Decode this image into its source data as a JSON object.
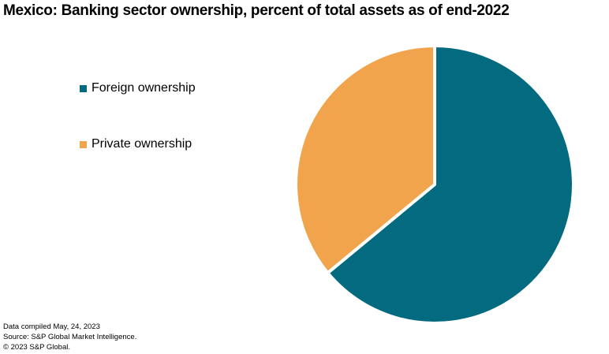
{
  "title": "Mexico: Banking sector ownership, percent of total assets as of end-2022",
  "legend": {
    "position": "left",
    "items": [
      {
        "label": "Foreign ownership",
        "color": "#046A80"
      },
      {
        "label": "Private ownership",
        "color": "#F2A44C"
      }
    ]
  },
  "chart_data": {
    "type": "pie",
    "title": "Mexico: Banking sector ownership, percent of total assets as of end-2022",
    "categories": [
      "Foreign ownership",
      "Private ownership"
    ],
    "values": [
      64,
      36
    ],
    "unit": "percent of total assets",
    "colors": [
      "#046A80",
      "#F2A44C"
    ],
    "start_angle_deg": 0,
    "direction": "clockwise",
    "slice_separator_color": "#FFFFFF",
    "legend_position": "left",
    "data_labels": "none"
  },
  "footer": {
    "compiled": "Data compiled May, 24, 2023",
    "source": "Source: S&P Global Market Intelligence.",
    "copyright": "© 2023 S&P Global."
  }
}
